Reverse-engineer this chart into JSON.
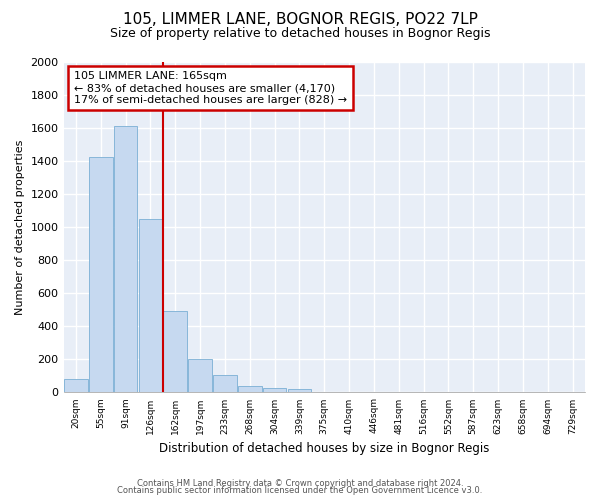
{
  "title": "105, LIMMER LANE, BOGNOR REGIS, PO22 7LP",
  "subtitle": "Size of property relative to detached houses in Bognor Regis",
  "xlabel": "Distribution of detached houses by size in Bognor Regis",
  "ylabel": "Number of detached properties",
  "categories": [
    "20sqm",
    "55sqm",
    "91sqm",
    "126sqm",
    "162sqm",
    "197sqm",
    "233sqm",
    "268sqm",
    "304sqm",
    "339sqm",
    "375sqm",
    "410sqm",
    "446sqm",
    "481sqm",
    "516sqm",
    "552sqm",
    "587sqm",
    "623sqm",
    "658sqm",
    "694sqm",
    "729sqm"
  ],
  "values": [
    80,
    1420,
    1610,
    1050,
    490,
    200,
    105,
    40,
    25,
    20,
    0,
    0,
    0,
    0,
    0,
    0,
    0,
    0,
    0,
    0,
    0
  ],
  "bar_color": "#c6d9f0",
  "bar_edge_color": "#7aafd4",
  "vline_x_idx": 4,
  "vline_color": "#cc0000",
  "annotation_text": "105 LIMMER LANE: 165sqm\n← 83% of detached houses are smaller (4,170)\n17% of semi-detached houses are larger (828) →",
  "annotation_box_color": "#ffffff",
  "annotation_box_edge": "#cc0000",
  "ylim": [
    0,
    2000
  ],
  "yticks": [
    0,
    200,
    400,
    600,
    800,
    1000,
    1200,
    1400,
    1600,
    1800,
    2000
  ],
  "footer1": "Contains HM Land Registry data © Crown copyright and database right 2024.",
  "footer2": "Contains public sector information licensed under the Open Government Licence v3.0.",
  "bg_color": "#ffffff",
  "plot_bg_color": "#e8eef7",
  "grid_color": "#ffffff",
  "title_fontsize": 11,
  "subtitle_fontsize": 9
}
